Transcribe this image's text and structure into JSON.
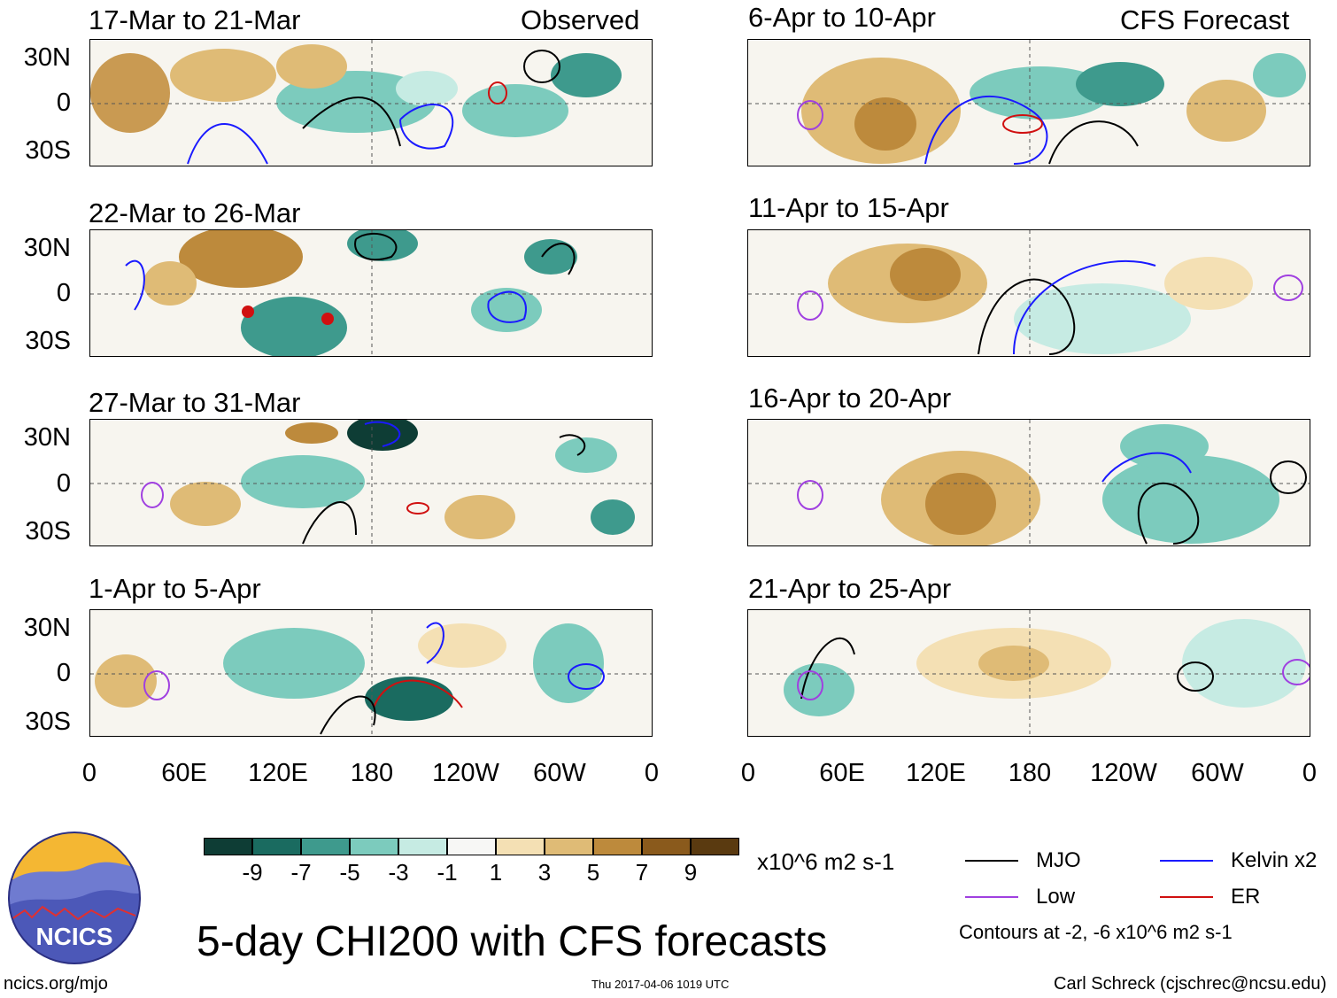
{
  "panels": {
    "p1": {
      "title": "17-Mar to 21-Mar",
      "tag": "Observed"
    },
    "p2": {
      "title": "22-Mar to 26-Mar"
    },
    "p3": {
      "title": "27-Mar to 31-Mar"
    },
    "p4": {
      "title": "1-Apr to 5-Apr"
    },
    "p5": {
      "title": "6-Apr to 10-Apr",
      "tag": "CFS Forecast"
    },
    "p6": {
      "title": "11-Apr to 15-Apr"
    },
    "p7": {
      "title": "16-Apr to 20-Apr"
    },
    "p8": {
      "title": "21-Apr to 25-Apr"
    }
  },
  "axes": {
    "y": [
      "30N",
      "0",
      "30S"
    ],
    "x": [
      "0",
      "60E",
      "120E",
      "180",
      "120W",
      "60W",
      "0"
    ]
  },
  "colorbar": {
    "unit": "x10^6 m2 s-1",
    "labels": [
      "-9",
      "-7",
      "-5",
      "-3",
      "-1",
      "1",
      "3",
      "5",
      "7",
      "9"
    ],
    "colors": [
      "#0e3d35",
      "#1a6b60",
      "#3e9a8d",
      "#7ccbbd",
      "#c6ebe3",
      "#f7f7f5",
      "#f4e0b4",
      "#dfbb76",
      "#bd8a3c",
      "#8a5a1c",
      "#5a3a10"
    ]
  },
  "legend": {
    "mjo": {
      "label": "MJO",
      "color": "#000000"
    },
    "kelvin": {
      "label": "Kelvin x2",
      "color": "#1a1aff"
    },
    "low": {
      "label": "Low",
      "color": "#a040e0"
    },
    "er": {
      "label": "ER",
      "color": "#d01010"
    },
    "contours_note": "Contours at -2, -6 x10^6 m2 s-1"
  },
  "logo": {
    "text": "NCICS"
  },
  "main_title": "5-day CHI200 with CFS forecasts",
  "footer": {
    "site": "ncics.org/mjo",
    "timestamp": "Thu 2017-04-06 1019 UTC",
    "author": "Carl Schreck (cjschrec@ncsu.edu)"
  }
}
